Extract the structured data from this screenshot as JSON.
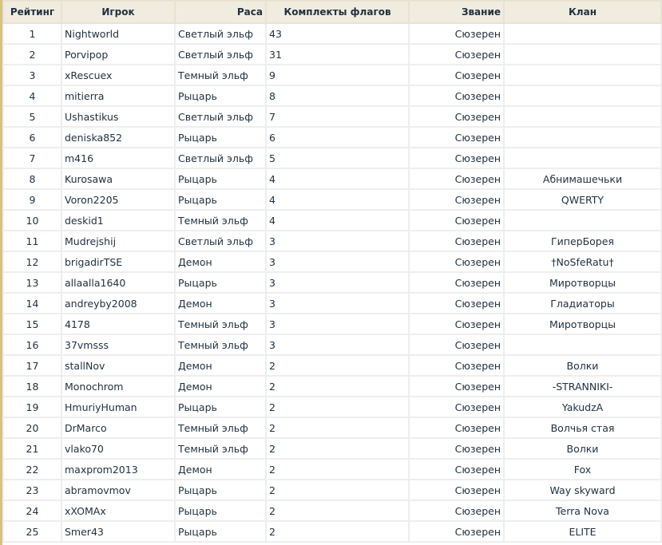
{
  "headers": [
    "Рейтинг",
    "Игрок",
    "Раса",
    "Комплекты флагов",
    "Звание",
    "Клан"
  ],
  "rows": [
    [
      "1",
      "Nightworld",
      "Светлый эльф",
      "43",
      "Сюзерен",
      ""
    ],
    [
      "2",
      "Porvipop",
      "Светлый эльф",
      "31",
      "Сюзерен",
      ""
    ],
    [
      "3",
      "xRescuex",
      "Темный эльф",
      "9",
      "Сюзерен",
      ""
    ],
    [
      "4",
      "mitierra",
      "Рыцарь",
      "8",
      "Сюзерен",
      ""
    ],
    [
      "5",
      "Ushastikus",
      "Светлый эльф",
      "7",
      "Сюзерен",
      ""
    ],
    [
      "6",
      "deniska852",
      "Рыцарь",
      "6",
      "Сюзерен",
      ""
    ],
    [
      "7",
      "m416",
      "Светлый эльф",
      "5",
      "Сюзерен",
      ""
    ],
    [
      "8",
      "Kurosawa",
      "Рыцарь",
      "4",
      "Сюзерен",
      "Абнимашечьки"
    ],
    [
      "9",
      "Voron2205",
      "Рыцарь",
      "4",
      "Сюзерен",
      "QWERTY"
    ],
    [
      "10",
      "deskid1",
      "Темный эльф",
      "4",
      "Сюзерен",
      ""
    ],
    [
      "11",
      "Mudrejshij",
      "Светлый эльф",
      "3",
      "Сюзерен",
      "ГиперБорея"
    ],
    [
      "12",
      "brigadirTSE",
      "Демон",
      "3",
      "Сюзерен",
      "†NoSfeRatu†"
    ],
    [
      "13",
      "allaalla1640",
      "Рыцарь",
      "3",
      "Сюзерен",
      "Миротворцы"
    ],
    [
      "14",
      "andreyby2008",
      "Демон",
      "3",
      "Сюзерен",
      "Гладиаторы"
    ],
    [
      "15",
      "4178",
      "Темный эльф",
      "3",
      "Сюзерен",
      "Миротворцы"
    ],
    [
      "16",
      "37vmsss",
      "Темный эльф",
      "3",
      "Сюзерен",
      ""
    ],
    [
      "17",
      "stallNov",
      "Демон",
      "2",
      "Сюзерен",
      "Волки"
    ],
    [
      "18",
      "Monochrom",
      "Демон",
      "2",
      "Сюзерен",
      "-STRANNIKI-"
    ],
    [
      "19",
      "HmuriyHuman",
      "Рыцарь",
      "2",
      "Сюзерен",
      "YakudzA"
    ],
    [
      "20",
      "DrMarco",
      "Темный эльф",
      "2",
      "Сюзерен",
      "Волчья стая"
    ],
    [
      "21",
      "vlako70",
      "Темный эльф",
      "2",
      "Сюзерен",
      "Волки"
    ],
    [
      "22",
      "maxprom2013",
      "Демон",
      "2",
      "Сюзерен",
      "Fox"
    ],
    [
      "23",
      "abramovmov",
      "Рыцарь",
      "2",
      "Сюзерен",
      "Way skyward"
    ],
    [
      "24",
      "xXOMAx",
      "Рыцарь",
      "2",
      "Сюзерен",
      "Terra Nova"
    ],
    [
      "25",
      "Smer43",
      "Рыцарь",
      "2",
      "Сюзерен",
      "ELITE"
    ]
  ]
}
